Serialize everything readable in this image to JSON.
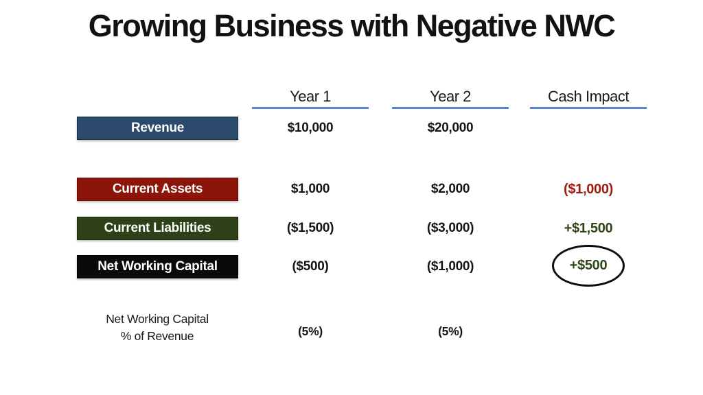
{
  "title": "Growing Business with Negative NWC",
  "colors": {
    "revenue_box": "#2C4A6B",
    "assets_box": "#8C1409",
    "liabilities_box": "#2D4018",
    "nwc_box": "#0A0A0A",
    "negative_red": "#9E1B10",
    "positive_green": "#2F4618",
    "header_underline": "#5B83C9"
  },
  "table": {
    "columns": [
      "Year 1",
      "Year 2",
      "Cash Impact"
    ],
    "rows": [
      {
        "label": "Revenue",
        "year1": "$10,000",
        "year2": "$20,000",
        "cash_impact": ""
      },
      {
        "label": "Current Assets",
        "year1": "$1,000",
        "year2": "$2,000",
        "cash_impact": "($1,000)"
      },
      {
        "label": "Current Liabilities",
        "year1": "($1,500)",
        "year2": "($3,000)",
        "cash_impact": "+$1,500"
      },
      {
        "label": "Net Working Capital",
        "year1": "($500)",
        "year2": "($1,000)",
        "cash_impact": "+$500"
      }
    ],
    "footer": {
      "label_line1": "Net Working Capital",
      "label_line2": "% of Revenue",
      "year1": "(5%)",
      "year2": "(5%)"
    }
  }
}
